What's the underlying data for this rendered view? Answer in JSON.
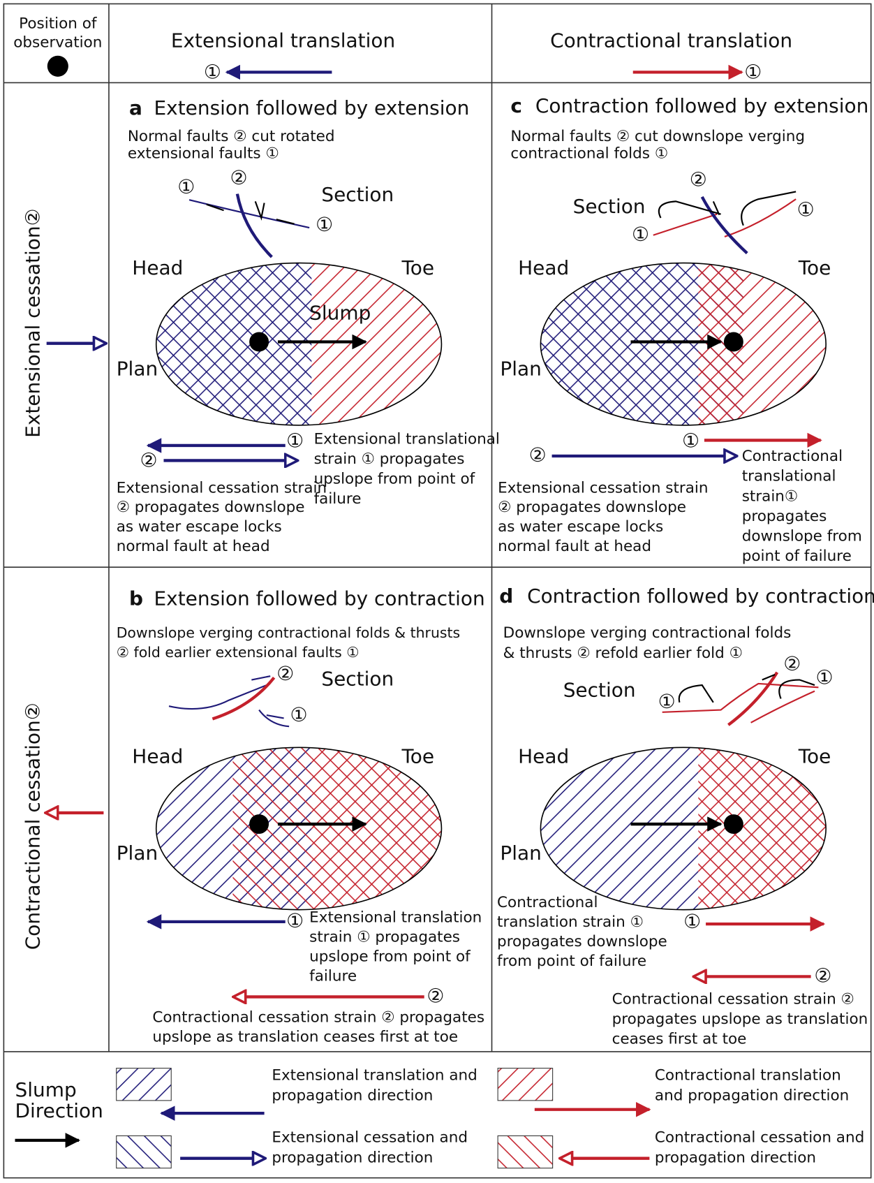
{
  "header": {
    "position_label": [
      "Position of",
      "observation"
    ],
    "columns": [
      {
        "title": "Extensional translation",
        "marker": "①"
      },
      {
        "title": "Contractional translation",
        "marker": "①"
      }
    ]
  },
  "rows": [
    "Extensional cessation②",
    "Contractional cessation②"
  ],
  "panels": [
    {
      "letter": "a",
      "title": "Extension followed by extension",
      "caption": [
        "Normal faults ② cut rotated",
        "extensional faults ①"
      ],
      "section": "Section",
      "section_markers": [
        "①",
        "②",
        "①"
      ],
      "head": "Head",
      "toe": "Toe",
      "plan": "Plan",
      "slump": "Slump",
      "arrow_markers": [
        "①",
        "②"
      ],
      "notes": [
        [
          "Extensional translational",
          "strain ① propagates",
          "upslope from point of",
          "failure"
        ],
        [
          "Extensional cessation strain",
          "② propagates downslope",
          "as water escape locks",
          "normal fault at head"
        ]
      ]
    },
    {
      "letter": "b",
      "title": "Extension followed by contraction",
      "caption": [
        "Downslope verging contractional folds & thrusts",
        "② fold earlier extensional faults ①"
      ],
      "section": "Section",
      "section_markers": [
        "②",
        "①"
      ],
      "head": "Head",
      "toe": "Toe",
      "plan": "Plan",
      "arrow_markers": [
        "①",
        "②"
      ],
      "notes": [
        [
          "Extensional translation",
          "strain ① propagates",
          "upslope from point of",
          "failure"
        ],
        [
          "Contractional cessation strain ② propagates",
          "upslope as translation ceases first at toe"
        ]
      ]
    },
    {
      "letter": "c",
      "title": "Contraction followed by extension",
      "caption": [
        "Normal faults ② cut downslope verging",
        "contractional folds ①"
      ],
      "section": "Section",
      "section_markers": [
        "②",
        "①",
        "①"
      ],
      "head": "Head",
      "toe": "Toe",
      "plan": "Plan",
      "arrow_markers": [
        "①",
        "②"
      ],
      "notes": [
        [
          "Contractional",
          "translational",
          "strain①",
          "propagates",
          "downslope from",
          "point of failure"
        ],
        [
          "Extensional cessation strain",
          "② propagates downslope",
          "as water escape locks",
          "normal fault at head"
        ]
      ]
    },
    {
      "letter": "d",
      "title": "Contraction followed by contraction",
      "caption": [
        "Downslope verging contractional folds",
        "& thrusts ② refold earlier fold ①"
      ],
      "section": "Section",
      "section_markers": [
        "②",
        "①",
        "①"
      ],
      "head": "Head",
      "toe": "Toe",
      "plan": "Plan",
      "arrow_markers": [
        "①",
        "②"
      ],
      "notes": [
        [
          "Contractional",
          "translation strain ①",
          "propagates downslope",
          "from point of failure"
        ],
        [
          "Contractional cessation strain ②",
          "propagates upslope as translation",
          "ceases first at toe"
        ]
      ]
    }
  ],
  "legend": {
    "title": [
      "Slump",
      "Direction"
    ],
    "items": [
      [
        "Extensional translation and",
        "propagation direction"
      ],
      [
        "Extensional cessation and",
        "propagation direction"
      ],
      [
        "Contractional translation",
        "and propagation direction"
      ],
      [
        "Contractional cessation and",
        "propagation direction"
      ]
    ]
  }
}
